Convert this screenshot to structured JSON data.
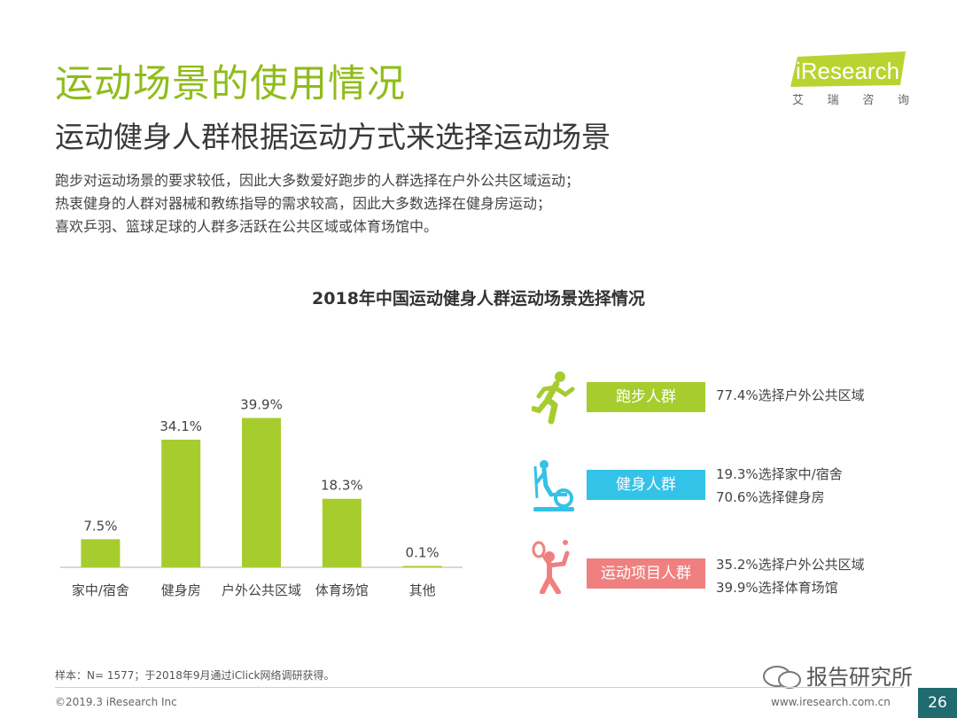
{
  "header": {
    "title": "运动场景的使用情况",
    "subtitle": "运动健身人群根据运动方式来选择运动场景",
    "description": [
      "跑步对运动场景的要求较低，因此大多数爱好跑步的人群选择在户外公共区域运动；",
      "热衷健身的人群对器械和教练指导的需求较高，因此大多数选择在健身房运动；",
      "喜欢乒羽、篮球足球的人群多活跃在公共区域或体育场馆中。"
    ]
  },
  "logo": {
    "brand": "iResearch",
    "cn_chars": [
      "艾",
      "瑞",
      "咨",
      "询"
    ]
  },
  "chart_data": {
    "type": "bar",
    "title": "2018年中国运动健身人群运动场景选择情况",
    "categories": [
      "家中/宿舍",
      "健身房",
      "户外公共区域",
      "体育场馆",
      "其他"
    ],
    "values": [
      7.5,
      34.1,
      39.9,
      18.3,
      0.1
    ],
    "value_labels": [
      "7.5%",
      "34.1%",
      "39.9%",
      "18.3%",
      "0.1%"
    ],
    "xlabel": "",
    "ylabel": "",
    "ylim": [
      0,
      45
    ],
    "unit": "%",
    "grid": false,
    "bar_color": "#a6cc2e"
  },
  "groups": [
    {
      "label": "跑步人群",
      "color": "#a6cc2e",
      "icon": "runner-icon",
      "lines": [
        "77.4%选择户外公共区域"
      ]
    },
    {
      "label": "健身人群",
      "color": "#33c2e8",
      "icon": "elliptical-trainer-icon",
      "lines": [
        "19.3%选择家中/宿舍",
        "70.6%选择健身房"
      ]
    },
    {
      "label": "运动项目人群",
      "color": "#f08080",
      "icon": "tennis-player-icon",
      "lines": [
        "35.2%选择户外公共区域",
        "39.9%选择体育场馆"
      ]
    }
  ],
  "footer": {
    "note": "样本：N= 1577；于2018年9月通过iClick网络调研获得。",
    "copyright": "©2019.3  iResearch Inc",
    "site": "www.iresearch.com.cn",
    "page": "26",
    "watermark": "报告研究所"
  }
}
